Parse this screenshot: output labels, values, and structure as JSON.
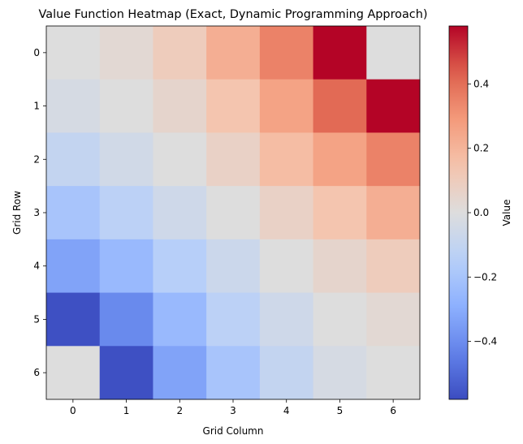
{
  "chart_data": {
    "type": "heatmap",
    "title": "Value Function Heatmap (Exact, Dynamic Programming Approach)",
    "xlabel": "Grid Column",
    "ylabel": "Grid Row",
    "x_categories": [
      "0",
      "1",
      "2",
      "3",
      "4",
      "5",
      "6"
    ],
    "y_categories": [
      "0",
      "1",
      "2",
      "3",
      "4",
      "5",
      "6"
    ],
    "values": [
      [
        0.0,
        0.03,
        0.1,
        0.22,
        0.35,
        0.59,
        0.0
      ],
      [
        -0.03,
        0.0,
        0.05,
        0.14,
        0.26,
        0.41,
        0.59
      ],
      [
        -0.1,
        -0.05,
        0.0,
        0.07,
        0.17,
        0.26,
        0.35
      ],
      [
        -0.2,
        -0.13,
        -0.06,
        0.0,
        0.07,
        0.14,
        0.22
      ],
      [
        -0.33,
        -0.25,
        -0.15,
        -0.07,
        0.0,
        0.05,
        0.1
      ],
      [
        -0.57,
        -0.41,
        -0.25,
        -0.13,
        -0.06,
        0.0,
        0.03
      ],
      [
        0.0,
        -0.57,
        -0.33,
        -0.2,
        -0.1,
        -0.03,
        0.0
      ]
    ],
    "colorbar": {
      "label": "Value",
      "cmap": "coolwarm",
      "vmin": -0.58,
      "vmax": 0.58,
      "ticks": [
        {
          "value": 0.4,
          "label": "0.4"
        },
        {
          "value": 0.2,
          "label": "0.2"
        },
        {
          "value": 0.0,
          "label": "0.0"
        },
        {
          "value": -0.2,
          "label": "−0.2"
        },
        {
          "value": -0.4,
          "label": "−0.4"
        }
      ]
    }
  }
}
